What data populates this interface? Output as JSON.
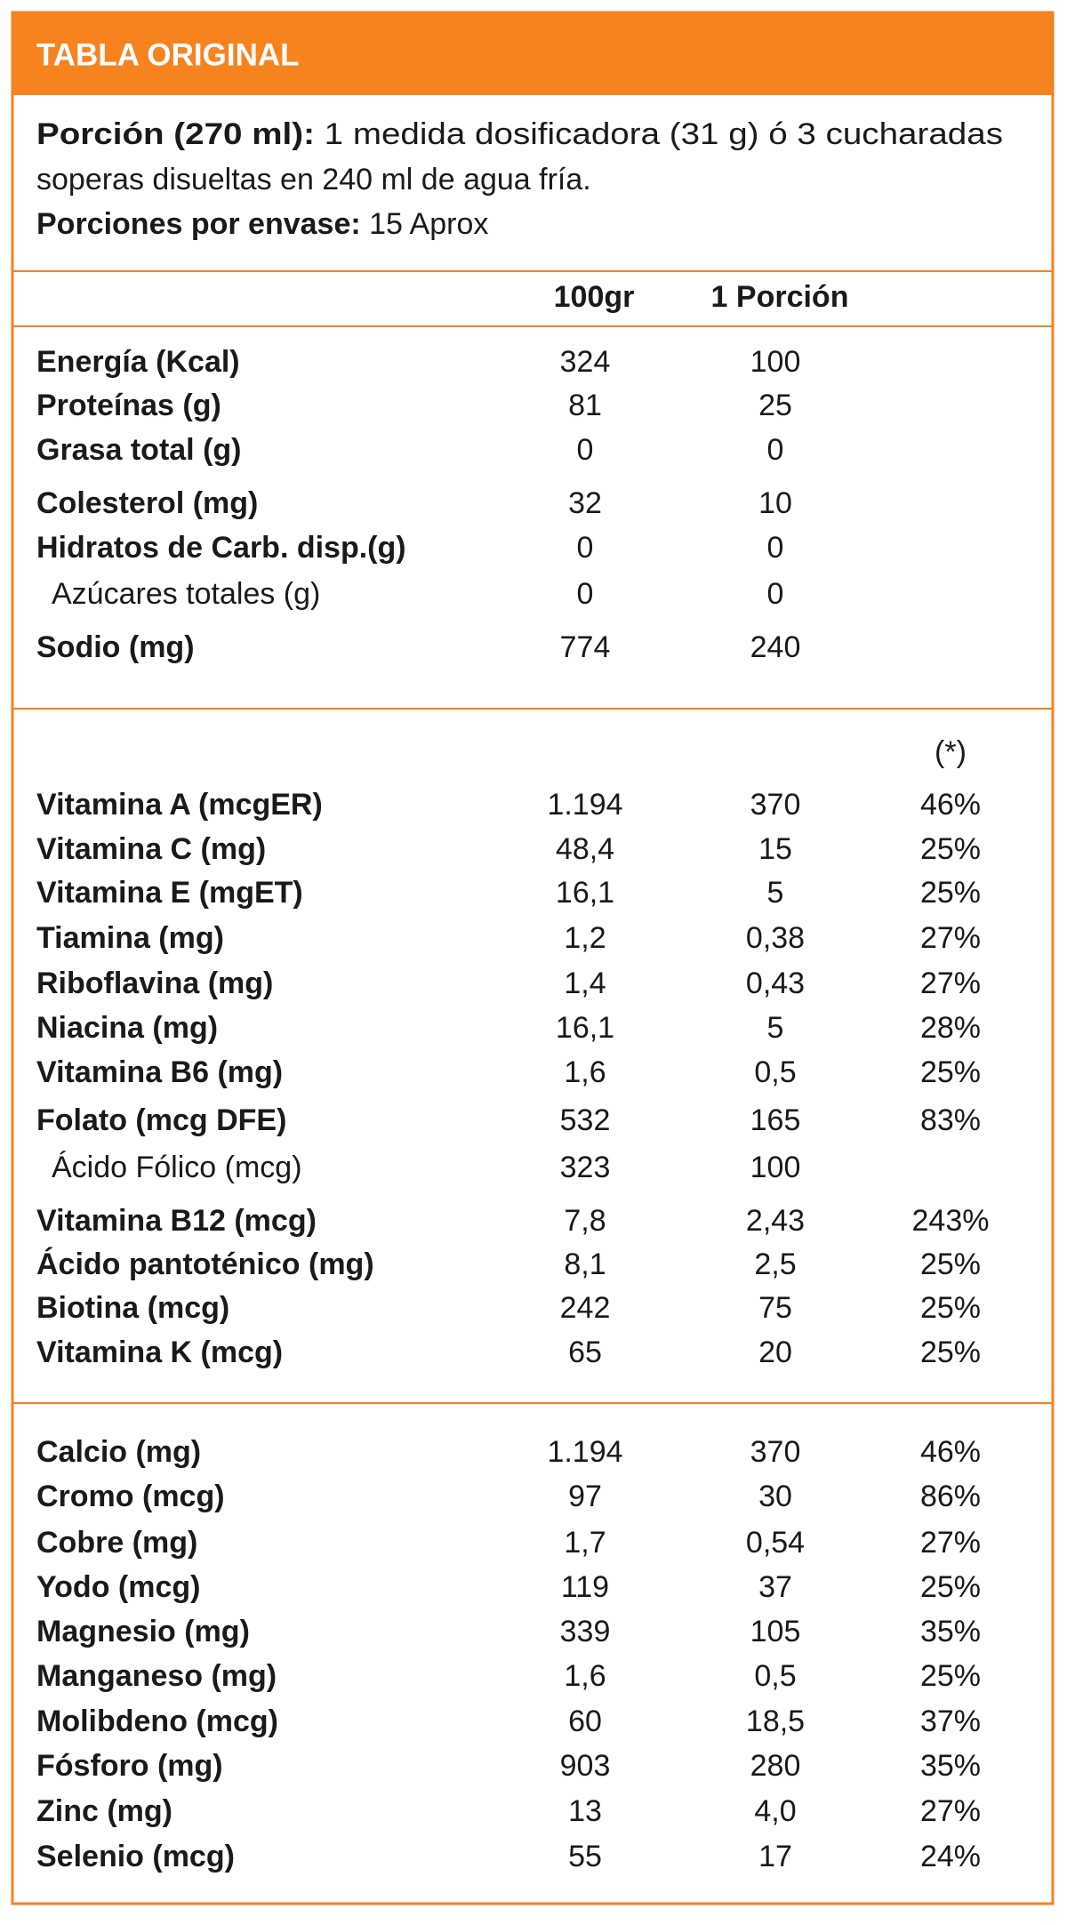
{
  "header": {
    "title": "TABLA ORIGINAL"
  },
  "serving": {
    "label": "Porción (270 ml):",
    "text_line1": "1 medida dosificadora (31 g) ó 3 cucharadas",
    "text_line2": "soperas disueltas en 240 ml de agua fría.",
    "per_container_label": "Porciones por envase:",
    "per_container_value": "15 Aprox"
  },
  "table": {
    "columns": [
      "100gr",
      "1 Porción"
    ],
    "sections": [
      {
        "rows": [
          {
            "label": "Energía (Kcal)",
            "values": [
              "324",
              "100"
            ]
          },
          {
            "label": "Proteínas (g)",
            "values": [
              "81",
              "25"
            ]
          },
          {
            "label": "Grasa total (g)",
            "values": [
              "0",
              "0"
            ]
          },
          {
            "label": "Colesterol (mg)",
            "values": [
              "32",
              "10"
            ]
          },
          {
            "label": "Hidratos de Carb. disp.(g)",
            "values": [
              "0",
              "0"
            ]
          },
          {
            "label": "Azúcares totales (g)",
            "values": [
              "0",
              "0"
            ],
            "sub": true
          },
          {
            "label": "Sodio (mg)",
            "values": [
              "774",
              "240"
            ]
          }
        ]
      },
      {
        "note": "(*)",
        "rows": [
          {
            "label": "Vitamina A (mcgER)",
            "values": [
              "1.194",
              "370",
              "46%"
            ]
          },
          {
            "label": "Vitamina C (mg)",
            "values": [
              "48,4",
              "15",
              "25%"
            ]
          },
          {
            "label": "Vitamina E (mgET)",
            "values": [
              "16,1",
              "5",
              "25%"
            ]
          },
          {
            "label": "Tiamina (mg)",
            "values": [
              "1,2",
              "0,38",
              "27%"
            ]
          },
          {
            "label": "Riboflavina (mg)",
            "values": [
              "1,4",
              "0,43",
              "27%"
            ]
          },
          {
            "label": "Niacina (mg)",
            "values": [
              "16,1",
              "5",
              "28%"
            ]
          },
          {
            "label": "Vitamina B6 (mg)",
            "values": [
              "1,6",
              "0,5",
              "25%"
            ]
          },
          {
            "label": "Folato (mcg DFE)",
            "values": [
              "532",
              "165",
              "83%"
            ]
          },
          {
            "label": "Ácido Fólico (mcg)",
            "values": [
              "323",
              "100"
            ],
            "sub": true
          },
          {
            "label": "Vitamina B12 (mcg)",
            "values": [
              "7,8",
              "2,43",
              "243%"
            ]
          },
          {
            "label": "Ácido pantoténico (mg)",
            "values": [
              "8,1",
              "2,5",
              "25%"
            ]
          },
          {
            "label": "Biotina (mcg)",
            "values": [
              "242",
              "75",
              "25%"
            ]
          },
          {
            "label": "Vitamina K (mcg)",
            "values": [
              "65",
              "20",
              "25%"
            ]
          }
        ]
      },
      {
        "rows": [
          {
            "label": "Calcio (mg)",
            "values": [
              "1.194",
              "370",
              "46%"
            ]
          },
          {
            "label": "Cromo (mcg)",
            "values": [
              "97",
              "30",
              "86%"
            ]
          },
          {
            "label": "Cobre (mg)",
            "values": [
              "1,7",
              "0,54",
              "27%"
            ]
          },
          {
            "label": "Yodo (mcg)",
            "values": [
              "119",
              "37",
              "25%"
            ]
          },
          {
            "label": "Magnesio (mg)",
            "values": [
              "339",
              "105",
              "35%"
            ]
          },
          {
            "label": "Manganeso (mg)",
            "values": [
              "1,6",
              "0,5",
              "25%"
            ]
          },
          {
            "label": "Molibdeno (mcg)",
            "values": [
              "60",
              "18,5",
              "37%"
            ]
          },
          {
            "label": "Fósforo (mg)",
            "values": [
              "903",
              "280",
              "35%"
            ]
          },
          {
            "label": "Zinc (mg)",
            "values": [
              "13",
              "4,0",
              "27%"
            ]
          },
          {
            "label": "Selenio (mcg)",
            "values": [
              "55",
              "17",
              "24%"
            ]
          }
        ]
      }
    ]
  }
}
